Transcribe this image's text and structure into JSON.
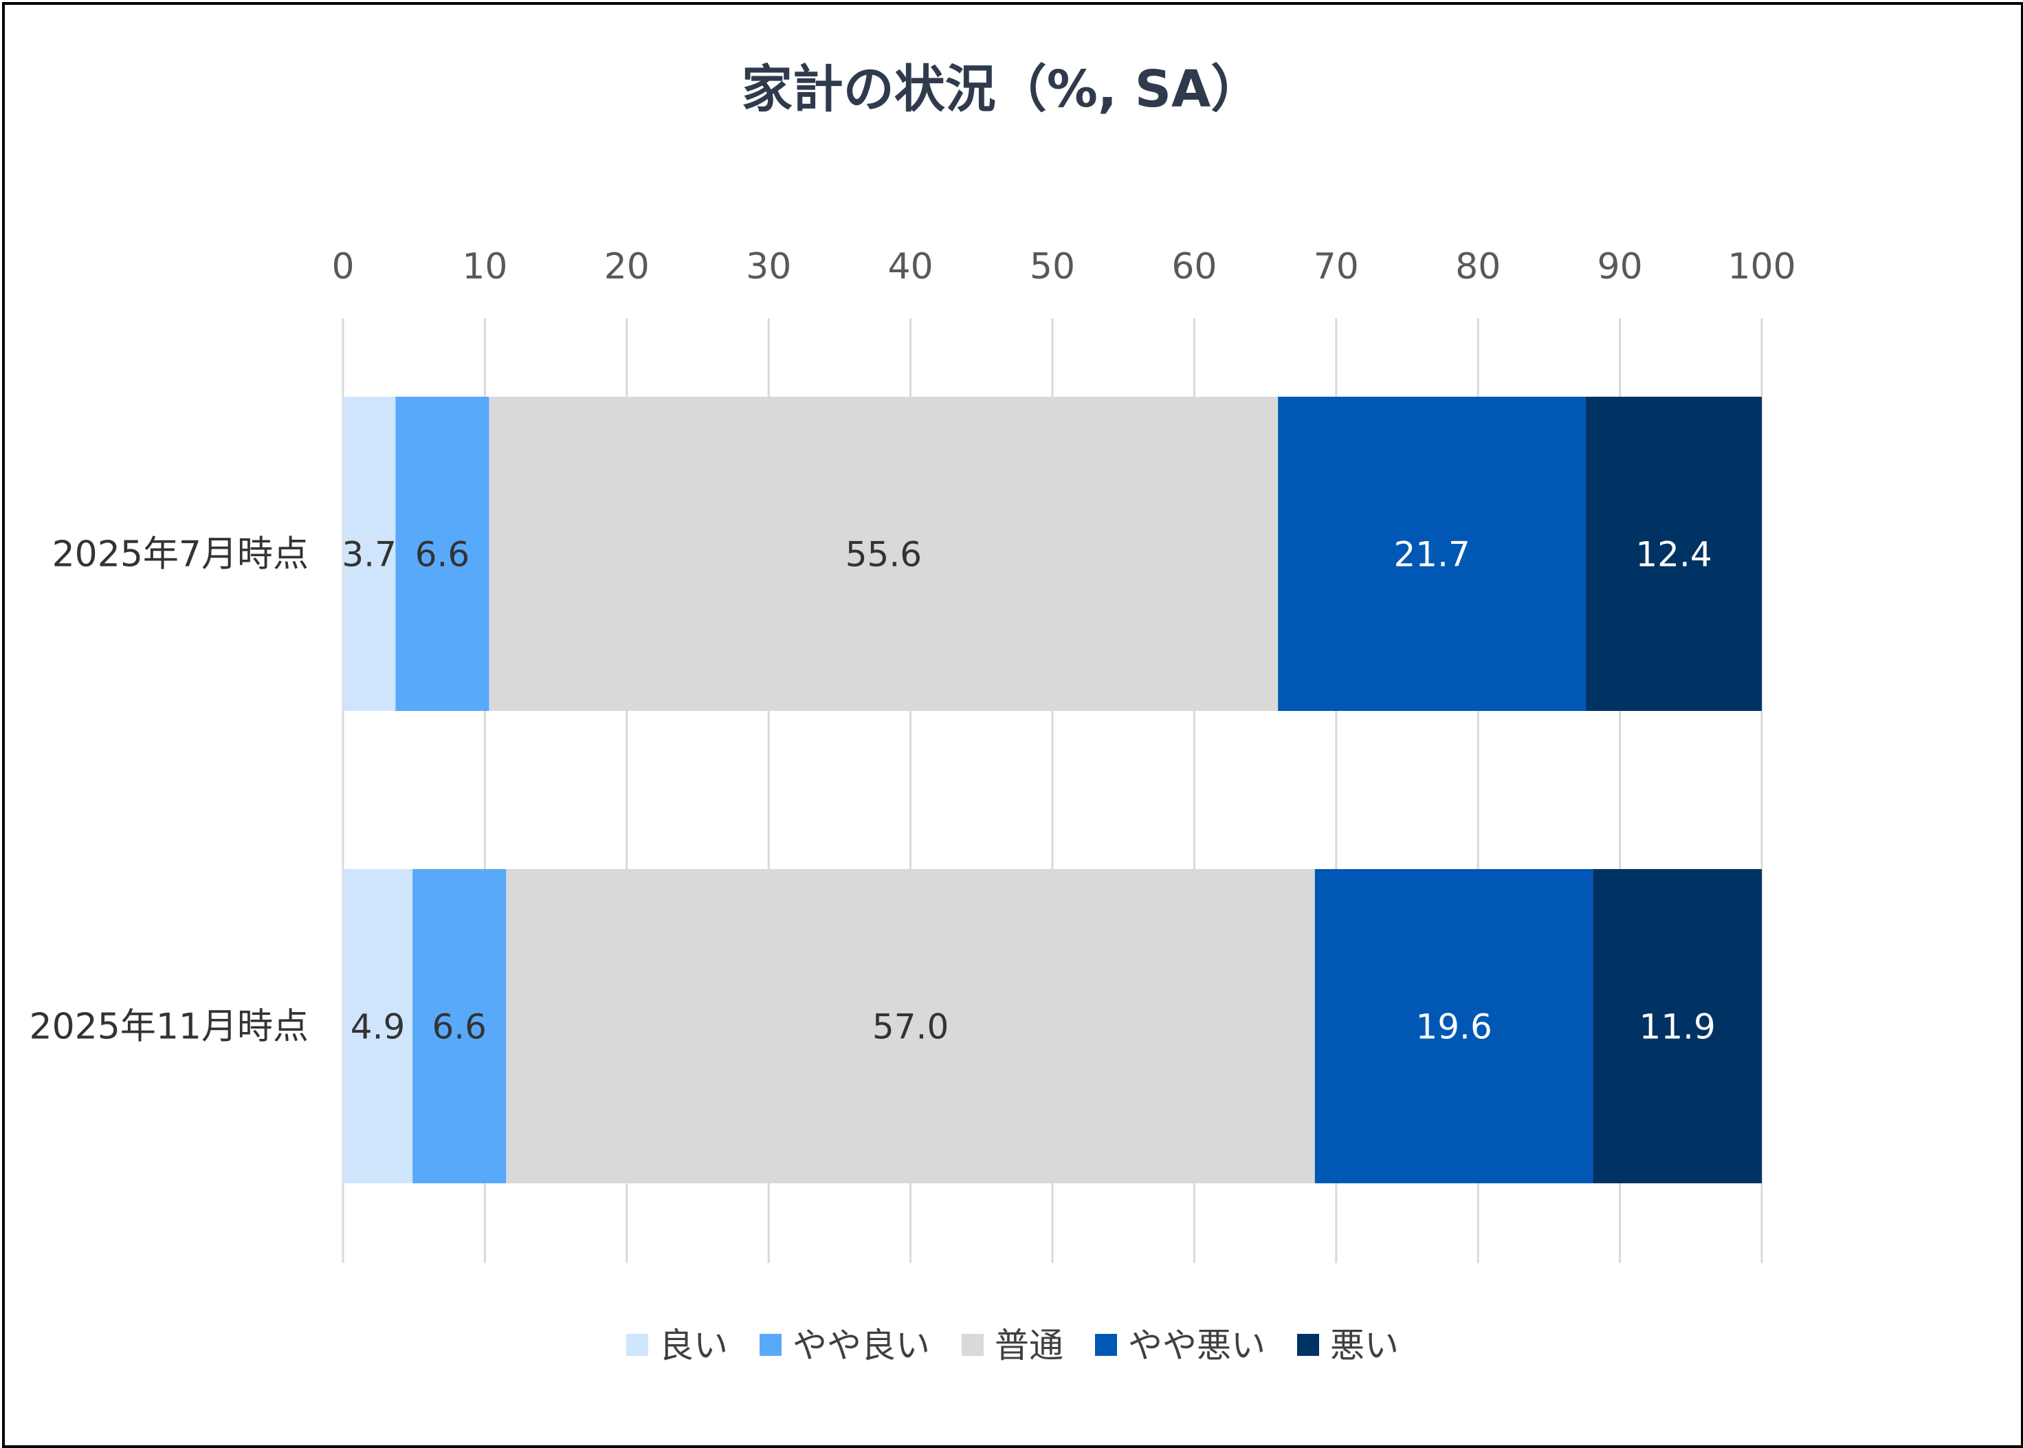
{
  "chart_data": {
    "type": "bar",
    "orientation": "horizontal",
    "stacked": true,
    "title": "家計の状況（%, SA）",
    "xlim": [
      0,
      100
    ],
    "xticks": [
      "0",
      "10",
      "20",
      "30",
      "40",
      "50",
      "60",
      "70",
      "80",
      "90",
      "100"
    ],
    "grid": true,
    "legend_position": "bottom",
    "categories": [
      "2025年7月時点",
      "2025年11月時点"
    ],
    "series": [
      {
        "name": "良い",
        "color": "#cfe5fb",
        "label_color": "#333333",
        "values": [
          3.7,
          4.9
        ],
        "labels": [
          "3.7",
          "4.9"
        ]
      },
      {
        "name": "やや良い",
        "color": "#59a9fb",
        "label_color": "#333333",
        "values": [
          6.6,
          6.6
        ],
        "labels": [
          "6.6",
          "6.6"
        ]
      },
      {
        "name": "普通",
        "color": "#d9d9d9",
        "label_color": "#333333",
        "values": [
          55.6,
          57.0
        ],
        "labels": [
          "55.6",
          "57.0"
        ]
      },
      {
        "name": "やや悪い",
        "color": "#0158b4",
        "label_color": "#ffffff",
        "values": [
          21.7,
          19.6
        ],
        "labels": [
          "21.7",
          "19.6"
        ]
      },
      {
        "name": "悪い",
        "color": "#003263",
        "label_color": "#ffffff",
        "values": [
          12.4,
          11.9
        ],
        "labels": [
          "12.4",
          "11.9"
        ]
      }
    ]
  }
}
